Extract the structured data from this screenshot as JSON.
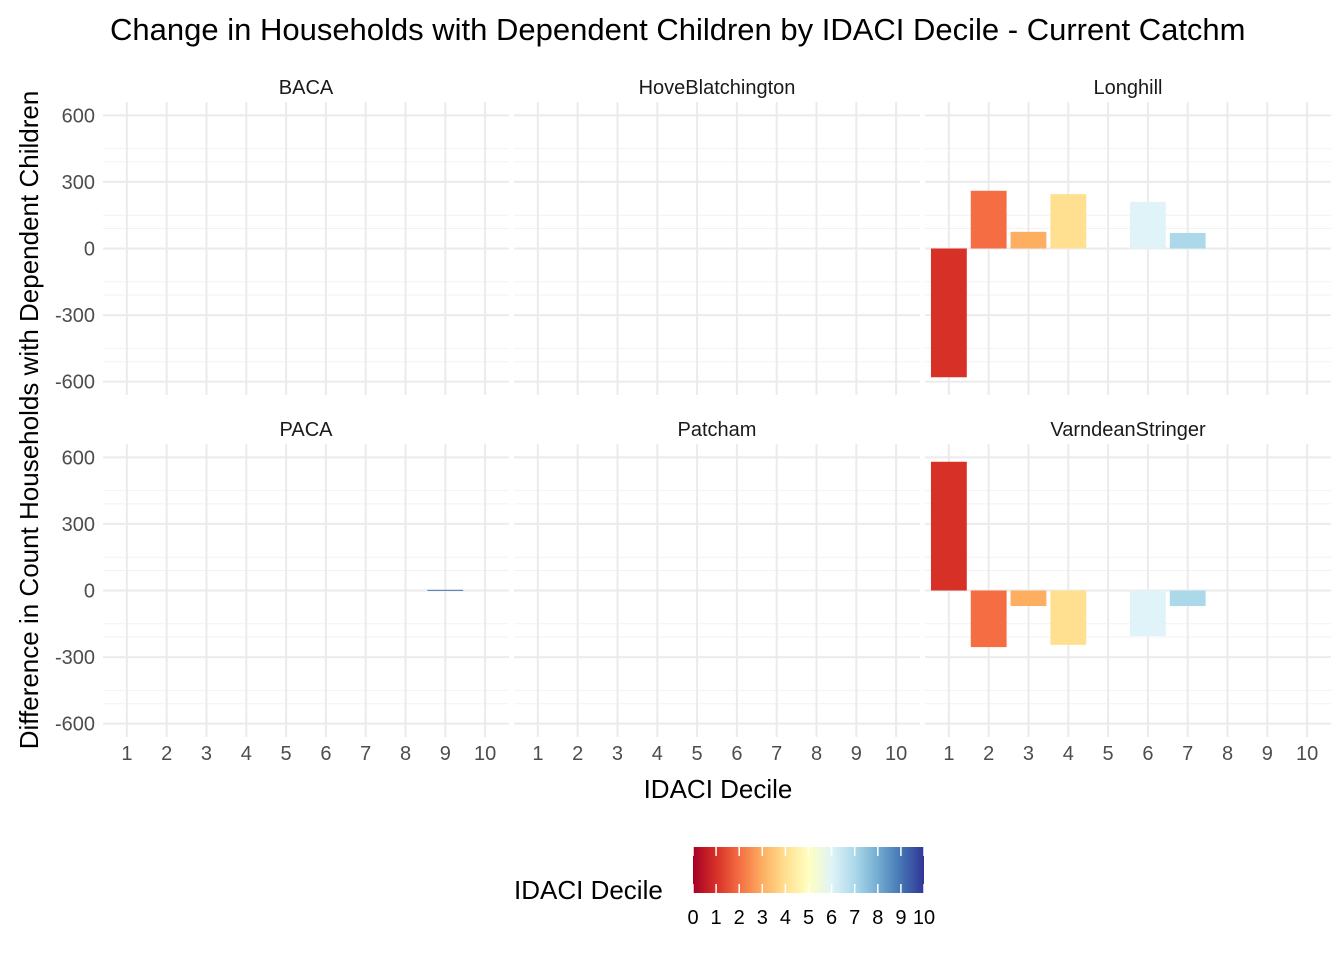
{
  "chart_data": {
    "type": "bar",
    "title": "Change in Households with Dependent Children by IDACI Decile - Current Catchm",
    "xlabel": "IDACI Decile",
    "ylabel": "Difference in Count Households with Dependent Children",
    "x_ticks": [
      "1",
      "2",
      "3",
      "4",
      "5",
      "6",
      "7",
      "8",
      "9",
      "10"
    ],
    "y_ticks": [
      -600,
      -300,
      0,
      300,
      600
    ],
    "ylim": [
      -660,
      660
    ],
    "grid": true,
    "facet_layout": "3 columns x 2 rows",
    "legend": {
      "title": "IDACI Decile",
      "type": "colorbar",
      "placement": "bottom",
      "ticks": [
        "0",
        "1",
        "2",
        "3",
        "4",
        "5",
        "6",
        "7",
        "8",
        "9",
        "10"
      ],
      "range": [
        0,
        10
      ],
      "palette": [
        "#a50026",
        "#d73027",
        "#f46d43",
        "#fdae61",
        "#fee090",
        "#ffffbf",
        "#e0f3f8",
        "#abd9e9",
        "#74add1",
        "#4575b4",
        "#313695"
      ]
    },
    "facets": [
      {
        "name": "BACA",
        "bars": []
      },
      {
        "name": "HoveBlatchington",
        "bars": []
      },
      {
        "name": "Longhill",
        "bars": [
          {
            "decile": 1,
            "value": -580
          },
          {
            "decile": 2,
            "value": 260
          },
          {
            "decile": 3,
            "value": 75
          },
          {
            "decile": 4,
            "value": 245
          },
          {
            "decile": 6,
            "value": 210
          },
          {
            "decile": 7,
            "value": 70
          }
        ]
      },
      {
        "name": "PACA",
        "bars": [
          {
            "decile": 9,
            "value": 3
          }
        ]
      },
      {
        "name": "Patcham",
        "bars": []
      },
      {
        "name": "VarndeanStringer",
        "bars": [
          {
            "decile": 1,
            "value": 580
          },
          {
            "decile": 2,
            "value": -255
          },
          {
            "decile": 3,
            "value": -70
          },
          {
            "decile": 4,
            "value": -245
          },
          {
            "decile": 6,
            "value": -205
          },
          {
            "decile": 7,
            "value": -70
          }
        ]
      }
    ]
  }
}
